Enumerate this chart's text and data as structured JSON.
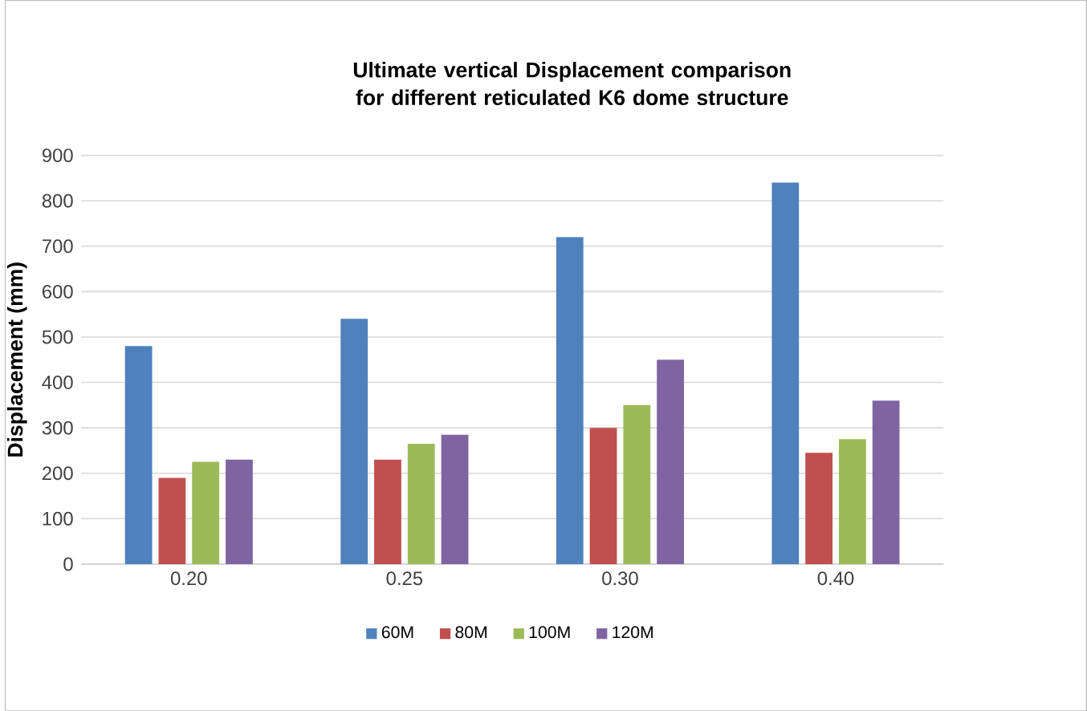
{
  "chart_data": {
    "type": "bar",
    "title": "Ultimate vertical Displacement comparison for different reticulated K6 dome structure",
    "ylabel": "Displacement (mm)",
    "categories": [
      "0.20",
      "0.25",
      "0.30",
      "0.40"
    ],
    "series": [
      {
        "name": "60M",
        "color": "#4f81bd",
        "values": [
          480,
          540,
          720,
          840
        ]
      },
      {
        "name": "80M",
        "color": "#c0504d",
        "values": [
          190,
          230,
          300,
          245
        ]
      },
      {
        "name": "100M",
        "color": "#9bbb59",
        "values": [
          225,
          265,
          350,
          275
        ]
      },
      {
        "name": "120M",
        "color": "#8064a2",
        "values": [
          230,
          285,
          450,
          360
        ]
      }
    ],
    "ylim": [
      0,
      900
    ],
    "yticks": [
      0,
      100,
      200,
      300,
      400,
      500,
      600,
      700,
      800,
      900
    ],
    "grid": "y",
    "legend": "bottom"
  }
}
